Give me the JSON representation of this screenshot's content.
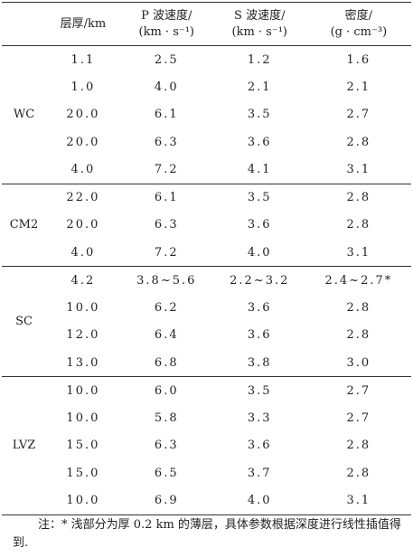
{
  "table": {
    "header": [
      "层厚/km",
      [
        "P 波速度/",
        "(km · s⁻¹)"
      ],
      [
        "S 波速度/",
        "(km · s⁻¹)"
      ],
      [
        "密度/",
        "(g · cm⁻³)"
      ]
    ],
    "groups": [
      {
        "name": "WC",
        "rows": [
          [
            "1.1",
            "2.5",
            "1.2",
            "1.6"
          ],
          [
            "1.0",
            "4.0",
            "2.1",
            "2.1"
          ],
          [
            "20.0",
            "6.1",
            "3.5",
            "2.7"
          ],
          [
            "20.0",
            "6.3",
            "3.6",
            "2.8"
          ],
          [
            "4.0",
            "7.2",
            "4.1",
            "3.1"
          ]
        ]
      },
      {
        "name": "CM2",
        "rows": [
          [
            "22.0",
            "6.1",
            "3.5",
            "2.8"
          ],
          [
            "20.0",
            "6.3",
            "3.6",
            "2.8"
          ],
          [
            "4.0",
            "7.2",
            "4.0",
            "3.1"
          ]
        ]
      },
      {
        "name": "SC",
        "rows": [
          [
            "4.2",
            "3.8~5.6",
            "2.2~3.2",
            "2.4~2.7*"
          ],
          [
            "10.0",
            "6.2",
            "3.6",
            "2.8"
          ],
          [
            "12.0",
            "6.4",
            "3.6",
            "2.8"
          ],
          [
            "13.0",
            "6.8",
            "3.8",
            "3.0"
          ]
        ]
      },
      {
        "name": "LVZ",
        "rows": [
          [
            "10.0",
            "6.0",
            "3.5",
            "2.7"
          ],
          [
            "10.0",
            "5.8",
            "3.3",
            "2.7"
          ],
          [
            "15.0",
            "6.3",
            "3.6",
            "2.8"
          ],
          [
            "15.0",
            "6.5",
            "3.7",
            "2.8"
          ],
          [
            "10.0",
            "6.9",
            "4.0",
            "3.1"
          ]
        ]
      }
    ]
  },
  "note": "注：* 浅部分为厚 0.2 km 的薄层，具体参数根据深度进行线性插值得到."
}
